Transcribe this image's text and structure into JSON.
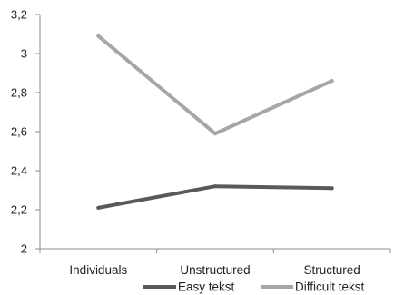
{
  "chart_data": {
    "type": "line",
    "title": "",
    "xlabel": "",
    "ylabel": "",
    "categories": [
      "Individuals",
      "Unstructured",
      "Structured"
    ],
    "series": [
      {
        "name": "Easy tekst",
        "values": [
          2.21,
          2.32,
          2.31
        ],
        "color": "#595959"
      },
      {
        "name": "Difficult tekst",
        "values": [
          3.09,
          2.59,
          2.86
        ],
        "color": "#a6a6a6"
      }
    ],
    "ylim": [
      2,
      3.2
    ],
    "yticks": [
      2,
      2.2,
      2.4,
      2.6,
      2.8,
      3,
      3.2
    ],
    "ytick_labels": [
      "2",
      "2,2",
      "2,4",
      "2,6",
      "2,8",
      "3",
      "3,2"
    ],
    "grid": false,
    "legend_position": "bottom"
  }
}
